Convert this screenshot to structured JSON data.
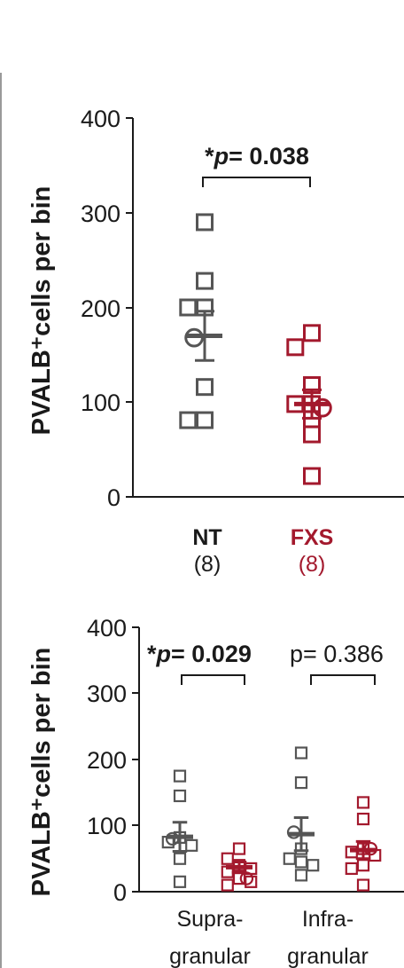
{
  "colors": {
    "nt": "#555555",
    "fxs": "#a3192d",
    "axis": "#1a1a1a"
  },
  "chart_data": [
    {
      "type": "scatter",
      "ylabel": "PVALB⁺cells per bin",
      "ylim": [
        0,
        400
      ],
      "yticks": [
        "0",
        "100",
        "200",
        "300",
        "400"
      ],
      "categories": [
        {
          "name": "NT",
          "count": "(8)"
        },
        {
          "name": "FXS",
          "count": "(8)"
        }
      ],
      "series": [
        {
          "group": "NT",
          "points": [
            290,
            228,
            200,
            200,
            116,
            81,
            81
          ],
          "circle": 168,
          "mean": 170,
          "sem": 26
        },
        {
          "group": "FXS",
          "points": [
            173,
            158,
            118,
            98,
            98,
            82,
            66,
            22
          ],
          "circle": 94,
          "mean": 98,
          "sem": 15
        }
      ],
      "annotations": [
        {
          "star": "*",
          "p": "p",
          "text": "= 0.038"
        }
      ]
    },
    {
      "type": "scatter",
      "ylabel": "PVALB⁺cells per bin",
      "ylim": [
        0,
        400
      ],
      "yticks": [
        "0",
        "100",
        "200",
        "300",
        "400"
      ],
      "categories": [
        {
          "name": "Supra-",
          "name2": "granular"
        },
        {
          "name": "Infra-",
          "name2": "granular"
        }
      ],
      "series": [
        {
          "group": "NT",
          "layer": "Supra-granular",
          "points": [
            175,
            145,
            82,
            75,
            70,
            50,
            15
          ],
          "circle": 80,
          "mean": 83,
          "sem": 22
        },
        {
          "group": "FXS",
          "layer": "Supra-granular",
          "points": [
            65,
            50,
            40,
            35,
            30,
            20,
            15,
            10
          ],
          "circle": 20,
          "mean": 37,
          "sem": 8
        },
        {
          "group": "NT",
          "layer": "Infra-granular",
          "points": [
            210,
            165,
            65,
            50,
            45,
            40,
            25
          ],
          "circle": 90,
          "mean": 87,
          "sem": 25
        },
        {
          "group": "FXS",
          "layer": "Infra-granular",
          "points": [
            135,
            110,
            65,
            60,
            55,
            40,
            35,
            10
          ],
          "circle": 65,
          "mean": 63,
          "sem": 13
        }
      ],
      "annotations": [
        {
          "star": "*",
          "p": "p",
          "text": "= 0.029"
        },
        {
          "text": "p= 0.386"
        }
      ]
    }
  ]
}
